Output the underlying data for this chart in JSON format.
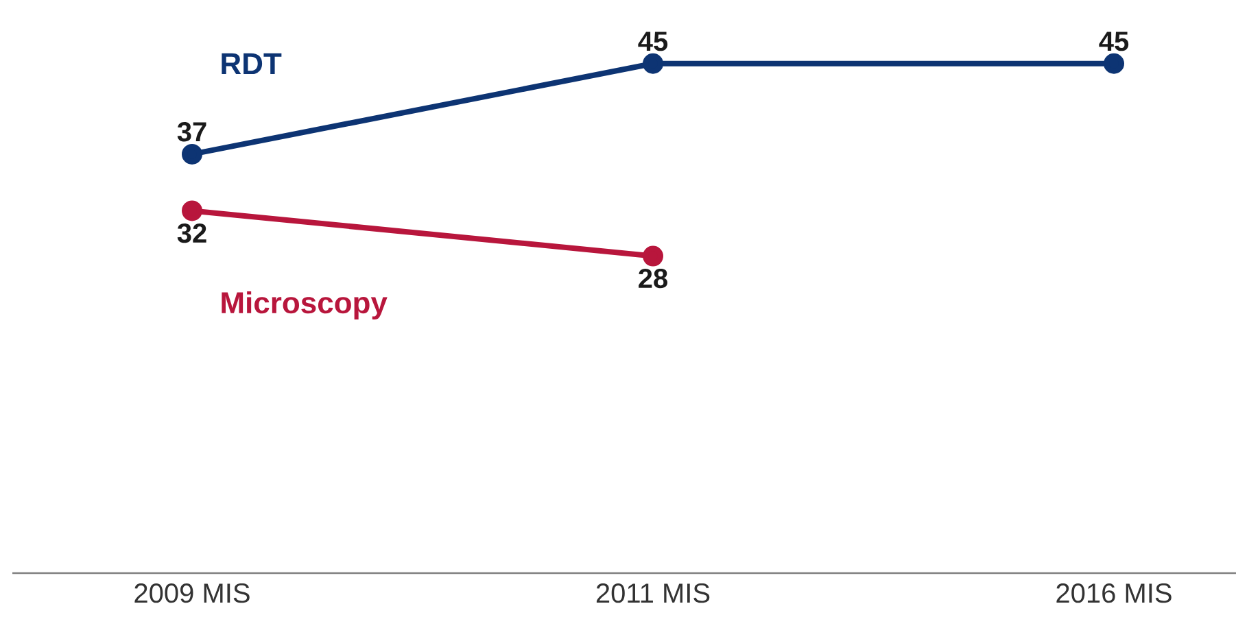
{
  "chart_data": {
    "type": "line",
    "categories": [
      "2009 MIS",
      "2011 MIS",
      "2016 MIS"
    ],
    "series": [
      {
        "name": "RDT",
        "color": "#0d3473",
        "values": [
          37,
          45,
          45
        ]
      },
      {
        "name": "Microscopy",
        "color": "#b8163c",
        "values": [
          32,
          28,
          null
        ]
      }
    ],
    "tick_labels": "x",
    "data_labels": true,
    "legend": false,
    "grid": false,
    "marker": "circle",
    "line_style": "solid"
  }
}
